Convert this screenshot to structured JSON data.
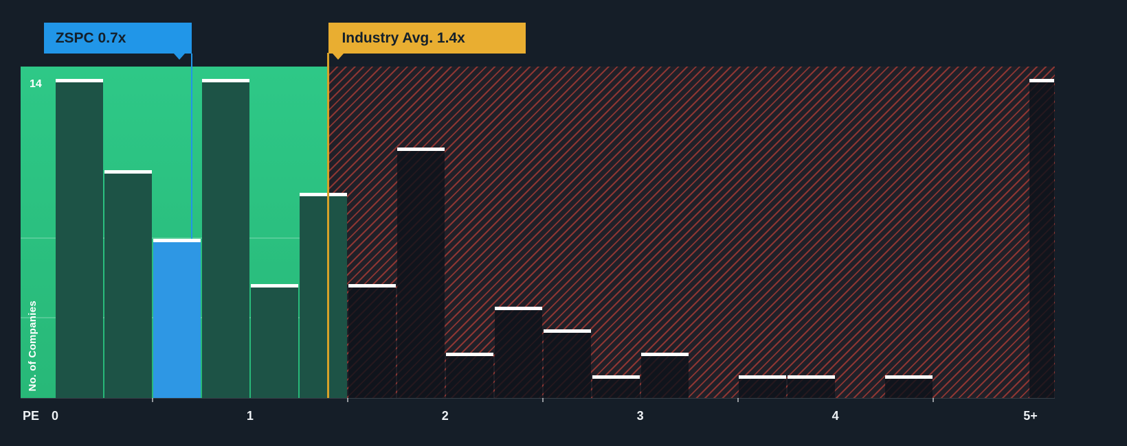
{
  "colors": {
    "background": "#151e28",
    "zone_green_top": "#2ec887",
    "zone_green_bottom": "#28b878",
    "bar_green": "#1d5346",
    "bar_blue": "#2e97e4",
    "flag_blue": "#2196e8",
    "flag_yellow": "#e9ae31",
    "line_yellow": "#d8a129",
    "hatch_red": "#e8483c",
    "text_dark": "#14202b",
    "text_light": "#eef2f5"
  },
  "chart_data": {
    "type": "bar",
    "xlabel": "PE",
    "ylabel": "No. of Companies",
    "y_top_label": "14",
    "ylim": [
      0,
      14.55
    ],
    "xlim": [
      -0.176,
      5.125
    ],
    "bar_width": 0.25,
    "gridlines_y": [
      3.5,
      7
    ],
    "legend_position": "none",
    "x_ticks": [
      {
        "x": 0,
        "label": "0"
      },
      {
        "x": 1,
        "label": "1"
      },
      {
        "x": 2,
        "label": "2"
      },
      {
        "x": 3,
        "label": "3"
      },
      {
        "x": 4,
        "label": "4"
      },
      {
        "x": 5,
        "label": "5+"
      }
    ],
    "minor_ticks_x": [
      0.5,
      1.5,
      2.5,
      3.5,
      4.5
    ],
    "company_marker": {
      "label": "ZSPC 0.7x",
      "x": 0.7,
      "value": 7
    },
    "industry_marker": {
      "label": "Industry Avg. 1.4x",
      "x": 1.4
    },
    "bars": [
      {
        "x0": 0.0,
        "value": 14,
        "zone": "below_avg"
      },
      {
        "x0": 0.25,
        "value": 10,
        "zone": "below_avg"
      },
      {
        "x0": 0.5,
        "value": 7,
        "zone": "company"
      },
      {
        "x0": 0.75,
        "value": 14,
        "zone": "below_avg"
      },
      {
        "x0": 1.0,
        "value": 5,
        "zone": "below_avg"
      },
      {
        "x0": 1.25,
        "value": 9,
        "zone": "below_avg"
      },
      {
        "x0": 1.5,
        "value": 5,
        "zone": "above_avg"
      },
      {
        "x0": 1.75,
        "value": 11,
        "zone": "above_avg"
      },
      {
        "x0": 2.0,
        "value": 2,
        "zone": "above_avg"
      },
      {
        "x0": 2.25,
        "value": 4,
        "zone": "above_avg"
      },
      {
        "x0": 2.5,
        "value": 3,
        "zone": "above_avg"
      },
      {
        "x0": 2.75,
        "value": 1,
        "zone": "above_avg"
      },
      {
        "x0": 3.0,
        "value": 2,
        "zone": "above_avg"
      },
      {
        "x0": 3.5,
        "value": 1,
        "zone": "above_avg"
      },
      {
        "x0": 3.75,
        "value": 1,
        "zone": "above_avg"
      },
      {
        "x0": 4.25,
        "value": 1,
        "zone": "above_avg"
      },
      {
        "x0": 4.99,
        "value": 14,
        "zone": "above_avg",
        "w": 0.135
      }
    ]
  }
}
